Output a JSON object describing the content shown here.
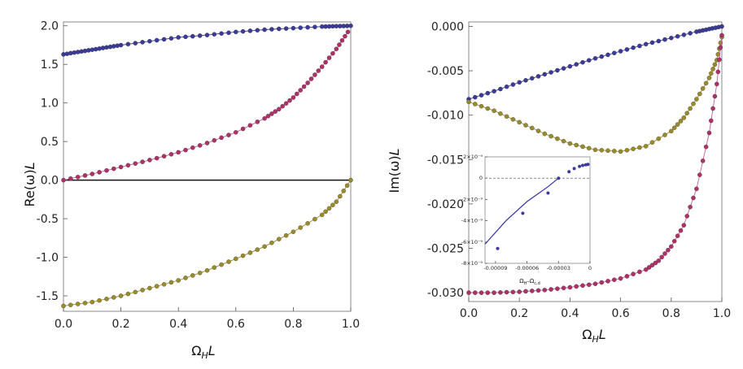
{
  "colors": {
    "blue": "#3b3b9a",
    "magenta": "#b0306a",
    "olive": "#9a8c2a",
    "frame": "#888888",
    "curve_magenta": "#c06090",
    "inset_curve": "#2f2fa8"
  },
  "chart_data": [
    {
      "id": "left",
      "type": "scatter",
      "title": "",
      "xlabel": "Ω",
      "xlabel_sub": "H",
      "xlabel_tail": "L",
      "ylabel": "Re(ω)",
      "ylabel_tail": "L",
      "xlim": [
        0,
        1
      ],
      "ylim": [
        -1.7,
        2.05
      ],
      "xticks": [
        "0.0",
        "0.2",
        "0.4",
        "0.6",
        "0.8",
        "1.0"
      ],
      "xtick_values": [
        0,
        0.2,
        0.4,
        0.6,
        0.8,
        1.0
      ],
      "yticks": [
        "2.0",
        "1.5",
        "1.0",
        "0.5",
        "0.0",
        "-0.5",
        "-1.0",
        "-1.5"
      ],
      "ytick_values": [
        2.0,
        1.5,
        1.0,
        0.5,
        0.0,
        -0.5,
        -1.0,
        -1.5
      ],
      "zero_line": true,
      "series": [
        {
          "name": "blue",
          "color": "blue",
          "x": [
            0.0,
            0.05,
            0.1,
            0.15,
            0.2,
            0.3,
            0.4,
            0.5,
            0.6,
            0.7,
            0.8,
            0.9,
            0.95,
            1.0
          ],
          "y": [
            1.63,
            1.66,
            1.69,
            1.72,
            1.75,
            1.8,
            1.85,
            1.88,
            1.92,
            1.95,
            1.97,
            1.99,
            1.995,
            2.0
          ]
        },
        {
          "name": "magenta",
          "color": "magenta",
          "x": [
            0.0,
            0.1,
            0.2,
            0.3,
            0.4,
            0.5,
            0.6,
            0.7,
            0.75,
            0.8,
            0.85,
            0.9,
            0.95,
            0.99
          ],
          "y": [
            0.0,
            0.08,
            0.17,
            0.26,
            0.36,
            0.48,
            0.62,
            0.8,
            0.92,
            1.07,
            1.26,
            1.47,
            1.7,
            1.92
          ]
        },
        {
          "name": "olive",
          "color": "olive",
          "x": [
            0.0,
            0.1,
            0.2,
            0.3,
            0.4,
            0.5,
            0.6,
            0.7,
            0.8,
            0.9,
            0.95,
            1.0
          ],
          "y": [
            -1.63,
            -1.58,
            -1.5,
            -1.4,
            -1.3,
            -1.17,
            -1.02,
            -0.86,
            -0.67,
            -0.45,
            -0.28,
            0.0
          ]
        }
      ]
    },
    {
      "id": "right",
      "type": "scatter",
      "title": "",
      "xlabel": "Ω",
      "xlabel_sub": "H",
      "xlabel_tail": "L",
      "ylabel": "Im(ω)",
      "ylabel_tail": "L",
      "xlim": [
        0,
        1
      ],
      "ylim": [
        -0.031,
        0.0005
      ],
      "xticks": [
        "0.0",
        "0.2",
        "0.4",
        "0.6",
        "0.8",
        "1.0"
      ],
      "xtick_values": [
        0,
        0.2,
        0.4,
        0.6,
        0.8,
        1.0
      ],
      "yticks": [
        "0.000",
        "-0.005",
        "-0.010",
        "-0.015",
        "-0.020",
        "-0.025",
        "-0.030"
      ],
      "ytick_values": [
        0.0,
        -0.005,
        -0.01,
        -0.015,
        -0.02,
        -0.025,
        -0.03
      ],
      "series": [
        {
          "name": "blue",
          "color": "blue",
          "x": [
            0.0,
            0.1,
            0.2,
            0.3,
            0.4,
            0.5,
            0.6,
            0.7,
            0.8,
            0.9,
            0.95,
            1.0
          ],
          "y": [
            -0.0082,
            -0.0073,
            -0.0063,
            -0.0054,
            -0.0045,
            -0.0036,
            -0.0028,
            -0.002,
            -0.0013,
            -0.0006,
            -0.0003,
            0.0
          ]
        },
        {
          "name": "olive",
          "color": "olive",
          "x": [
            0.0,
            0.1,
            0.2,
            0.3,
            0.4,
            0.5,
            0.6,
            0.7,
            0.8,
            0.85,
            0.9,
            0.95,
            0.98,
            1.0
          ],
          "y": [
            -0.0085,
            -0.0095,
            -0.0108,
            -0.0121,
            -0.0132,
            -0.0139,
            -0.0141,
            -0.0135,
            -0.0118,
            -0.0103,
            -0.0082,
            -0.0058,
            -0.0038,
            -0.0012
          ]
        },
        {
          "name": "magenta",
          "color": "magenta",
          "x": [
            0.0,
            0.1,
            0.2,
            0.3,
            0.4,
            0.5,
            0.6,
            0.7,
            0.75,
            0.8,
            0.85,
            0.9,
            0.95,
            0.98,
            1.0
          ],
          "y": [
            -0.03,
            -0.03,
            -0.0299,
            -0.0297,
            -0.0294,
            -0.029,
            -0.0284,
            -0.0274,
            -0.0264,
            -0.0248,
            -0.0224,
            -0.0183,
            -0.012,
            -0.0065,
            -0.001
          ]
        }
      ],
      "inset": {
        "type": "scatter",
        "xlabel": "Ω",
        "xlabel_sub": "H",
        "xlabel_mid": "–Ω",
        "xlabel_sub2": "c,d",
        "xlim": [
          -0.0001,
          0.0
        ],
        "ylim": [
          -8e-09,
          2e-09
        ],
        "xticks": [
          "-0.00009",
          "-0.00006",
          "-0.00003",
          "0"
        ],
        "xtick_values": [
          -9e-05,
          -6e-05,
          -3e-05,
          0.0
        ],
        "yticks": [
          "2×10⁻⁹",
          "0",
          "-2×10⁻⁹",
          "-4×10⁻⁹",
          "-6×10⁻⁹",
          "-8×10⁻⁹"
        ],
        "ytick_values": [
          2e-09,
          0.0,
          -2e-09,
          -4e-09,
          -6e-09,
          -8e-09
        ],
        "zero_dashed": true,
        "points": {
          "x": [
            -8.8e-05,
            -6.4e-05,
            -4e-05,
            -3e-05,
            -2e-05,
            -1.5e-05,
            -1e-05,
            -7e-06,
            -4e-06,
            -2e-06
          ],
          "y": [
            -6.6e-09,
            -3.3e-09,
            -1.4e-09,
            0.0,
            6e-10,
            9e-10,
            1.1e-09,
            1.2e-09,
            1.25e-09,
            1.3e-09
          ]
        },
        "curve": {
          "x": [
            -0.0001,
            -8e-05,
            -6e-05,
            -4e-05,
            -3e-05
          ],
          "y": [
            -6.2e-09,
            -4e-09,
            -2.2e-09,
            -8e-10,
            0.0
          ]
        }
      }
    }
  ]
}
